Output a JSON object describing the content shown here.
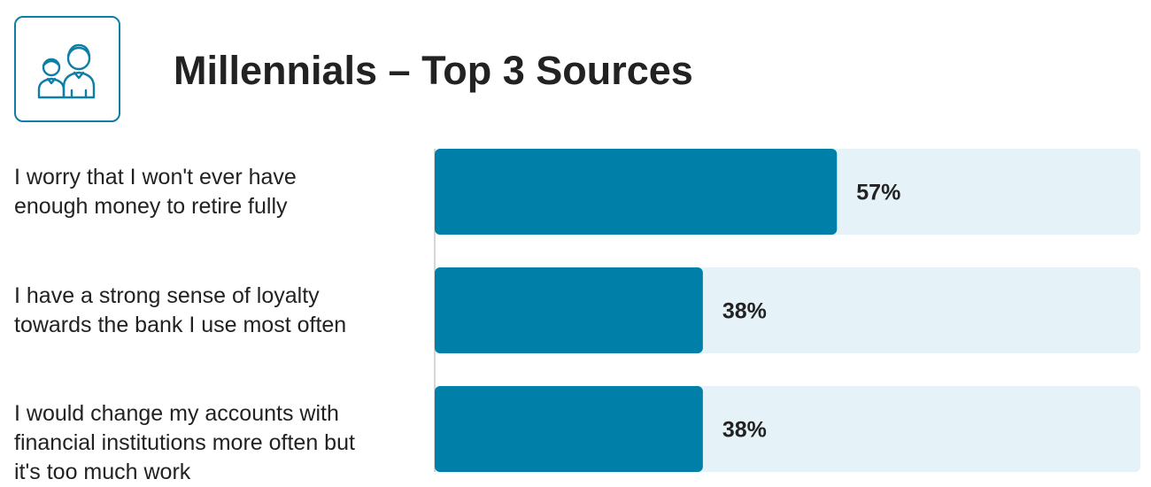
{
  "title": "Millennials – Top 3 Sources",
  "icon": "two-people-icon",
  "colors": {
    "accent": "#007fa8",
    "track": "#e5f2f7",
    "icon_stroke": "#0e7ea6"
  },
  "chart_data": {
    "type": "bar",
    "orientation": "horizontal",
    "categories": [
      "I worry that I won't ever have enough money to retire fully",
      "I have a strong sense of loyalty towards the bank I use most often",
      "I would change my accounts with financial institutions more often but it's too much work"
    ],
    "label_lines": [
      [
        "I worry that I won't ever have",
        "enough money to retire fully"
      ],
      [
        "I have a strong sense of loyalty",
        "towards the bank I use most often"
      ],
      [
        "I would change my accounts with",
        "financial institutions more often but",
        "it's too much work"
      ]
    ],
    "values": [
      57,
      38,
      38
    ],
    "value_labels": [
      "57%",
      "38%",
      "38%"
    ],
    "xlim": [
      0,
      100
    ],
    "grid": false,
    "legend": "none"
  }
}
